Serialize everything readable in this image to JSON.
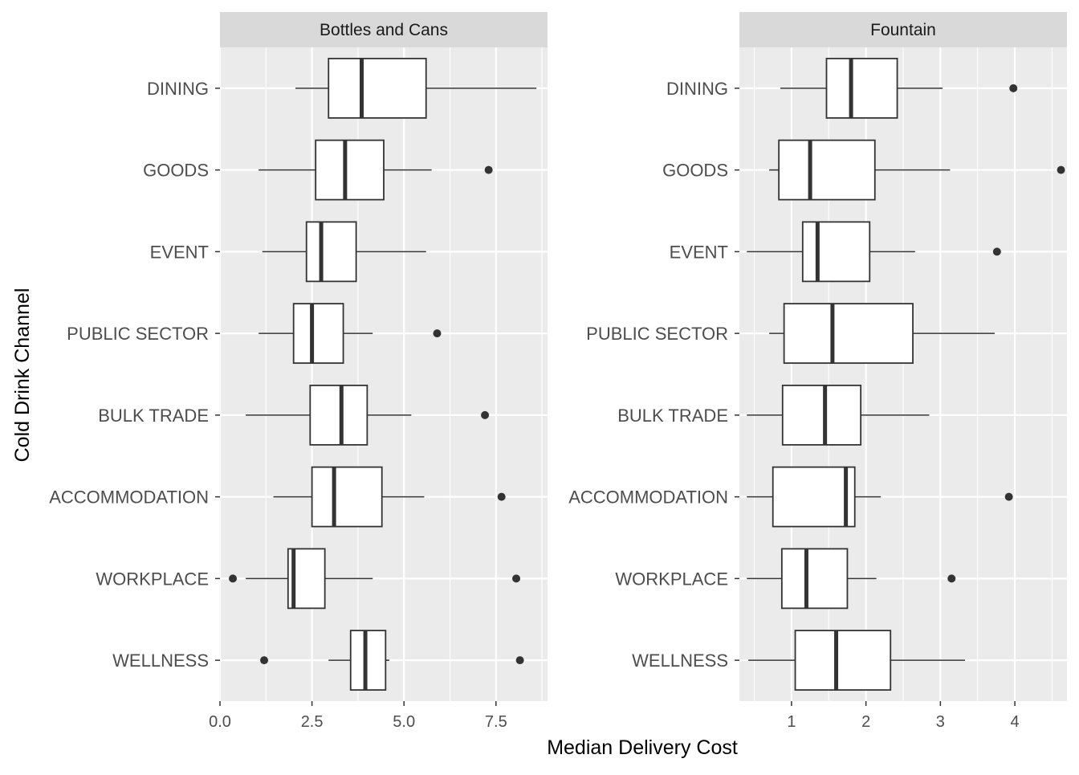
{
  "chart_data": {
    "type": "boxplot",
    "orientation": "horizontal",
    "xlabel": "Median Delivery Cost",
    "ylabel": "Cold Drink Channel",
    "categories": [
      "DINING",
      "GOODS",
      "EVENT",
      "PUBLIC SECTOR",
      "BULK TRADE",
      "ACCOMMODATION",
      "WORKPLACE",
      "WELLNESS"
    ],
    "grid": true,
    "colors": {
      "panel_bg": "#EBEBEB",
      "strip_bg": "#D9D9D9",
      "grid_major": "#FFFFFF",
      "box_fill": "#FFFFFF",
      "box_line": "#333333",
      "point": "#333333",
      "axis_text": "#4D4D4D",
      "title_text": "#000000"
    },
    "facets": [
      {
        "title": "Bottles and Cans",
        "xlim": [
          0,
          8.9
        ],
        "x_ticks": [
          0,
          2.5,
          5,
          7.5
        ],
        "x_tick_labels": [
          "0.0",
          "2.5",
          "5.0",
          "7.5"
        ],
        "boxes": [
          {
            "category": "DINING",
            "whisker_low": 2.05,
            "q1": 2.95,
            "median": 3.85,
            "q3": 5.6,
            "whisker_high": 8.6,
            "outliers": []
          },
          {
            "category": "GOODS",
            "whisker_low": 1.05,
            "q1": 2.6,
            "median": 3.4,
            "q3": 4.45,
            "whisker_high": 5.75,
            "outliers": [
              7.3
            ]
          },
          {
            "category": "EVENT",
            "whisker_low": 1.15,
            "q1": 2.35,
            "median": 2.75,
            "q3": 3.7,
            "whisker_high": 5.6,
            "outliers": []
          },
          {
            "category": "PUBLIC SECTOR",
            "whisker_low": 1.05,
            "q1": 2.0,
            "median": 2.5,
            "q3": 3.35,
            "whisker_high": 4.15,
            "outliers": [
              5.9
            ]
          },
          {
            "category": "BULK TRADE",
            "whisker_low": 0.7,
            "q1": 2.45,
            "median": 3.3,
            "q3": 4.0,
            "whisker_high": 5.2,
            "outliers": [
              7.2
            ]
          },
          {
            "category": "ACCOMMODATION",
            "whisker_low": 1.45,
            "q1": 2.5,
            "median": 3.1,
            "q3": 4.4,
            "whisker_high": 5.55,
            "outliers": [
              7.65
            ]
          },
          {
            "category": "WORKPLACE",
            "whisker_low": 0.7,
            "q1": 1.85,
            "median": 2.0,
            "q3": 2.85,
            "whisker_high": 4.15,
            "outliers": [
              0.35,
              8.05
            ]
          },
          {
            "category": "WELLNESS",
            "whisker_low": 2.95,
            "q1": 3.55,
            "median": 3.95,
            "q3": 4.5,
            "whisker_high": 4.6,
            "outliers": [
              1.2,
              8.15
            ]
          }
        ]
      },
      {
        "title": "Fountain",
        "xlim": [
          0.3,
          4.7
        ],
        "x_ticks": [
          1,
          2,
          3,
          4
        ],
        "x_tick_labels": [
          "1",
          "2",
          "3",
          "4"
        ],
        "boxes": [
          {
            "category": "DINING",
            "whisker_low": 0.85,
            "q1": 1.47,
            "median": 1.8,
            "q3": 2.42,
            "whisker_high": 3.03,
            "outliers": [
              3.98
            ]
          },
          {
            "category": "GOODS",
            "whisker_low": 0.7,
            "q1": 0.83,
            "median": 1.25,
            "q3": 2.12,
            "whisker_high": 3.13,
            "outliers": [
              4.62
            ]
          },
          {
            "category": "EVENT",
            "whisker_low": 0.4,
            "q1": 1.15,
            "median": 1.35,
            "q3": 2.05,
            "whisker_high": 2.66,
            "outliers": [
              3.76
            ]
          },
          {
            "category": "PUBLIC SECTOR",
            "whisker_low": 0.7,
            "q1": 0.9,
            "median": 1.55,
            "q3": 2.63,
            "whisker_high": 3.73,
            "outliers": []
          },
          {
            "category": "BULK TRADE",
            "whisker_low": 0.4,
            "q1": 0.88,
            "median": 1.45,
            "q3": 1.93,
            "whisker_high": 2.85,
            "outliers": []
          },
          {
            "category": "ACCOMMODATION",
            "whisker_low": 0.4,
            "q1": 0.75,
            "median": 1.73,
            "q3": 1.85,
            "whisker_high": 2.2,
            "outliers": [
              3.92
            ]
          },
          {
            "category": "WORKPLACE",
            "whisker_low": 0.4,
            "q1": 0.87,
            "median": 1.2,
            "q3": 1.75,
            "whisker_high": 2.14,
            "outliers": [
              3.15
            ]
          },
          {
            "category": "WELLNESS",
            "whisker_low": 0.42,
            "q1": 1.05,
            "median": 1.6,
            "q3": 2.33,
            "whisker_high": 3.33,
            "outliers": []
          }
        ]
      }
    ]
  }
}
